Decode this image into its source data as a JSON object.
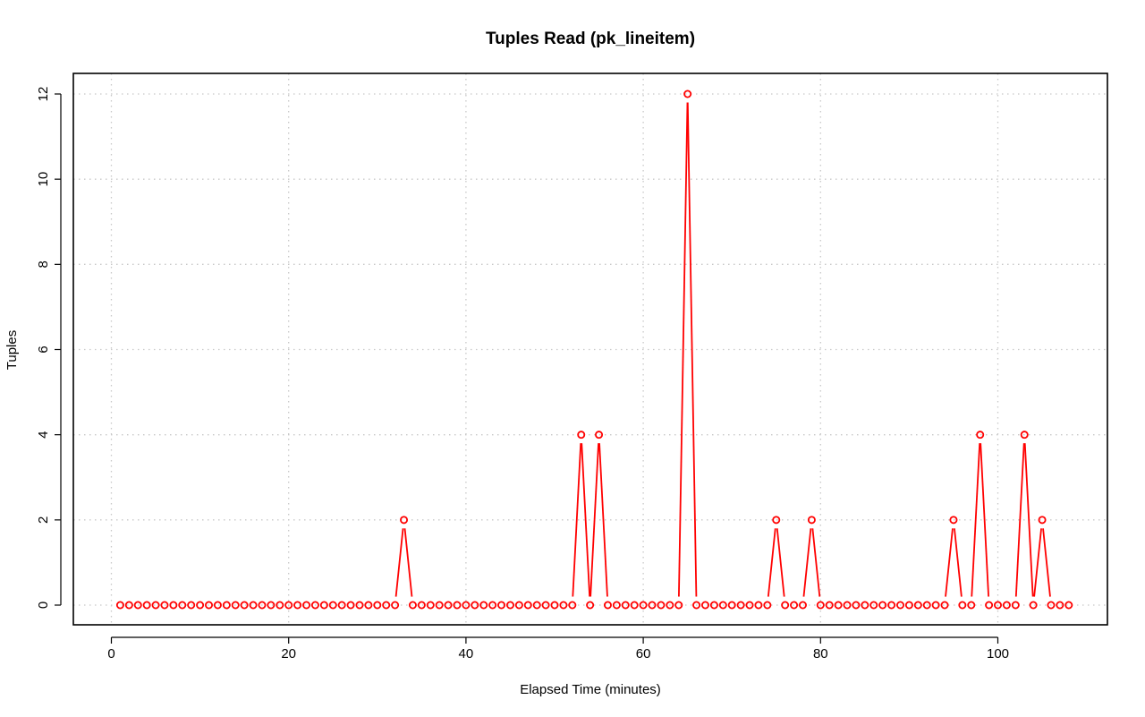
{
  "chart_data": {
    "type": "line",
    "title": "Tuples Read (pk_lineitem)",
    "xlabel": "Elapsed Time (minutes)",
    "ylabel": "Tuples",
    "xlim": [
      1,
      108
    ],
    "ylim": [
      0,
      12
    ],
    "x_ticks": [
      0,
      20,
      40,
      60,
      80,
      100
    ],
    "y_ticks": [
      0,
      2,
      4,
      6,
      8,
      10,
      12
    ],
    "grid": true,
    "line_style": "points joined by line segments",
    "marker": "open circle",
    "color": "#ff0000",
    "series": [
      {
        "x": [
          1,
          2,
          3,
          4,
          5,
          6,
          7,
          8,
          9,
          10,
          11,
          12,
          13,
          14,
          15,
          16,
          17,
          18,
          19,
          20,
          21,
          22,
          23,
          24,
          25,
          26,
          27,
          28,
          29,
          30,
          31,
          32,
          33,
          34,
          35,
          36,
          37,
          38,
          39,
          40,
          41,
          42,
          43,
          44,
          45,
          46,
          47,
          48,
          49,
          50,
          51,
          52,
          53,
          54,
          55,
          56,
          57,
          58,
          59,
          60,
          61,
          62,
          63,
          64,
          65,
          66,
          67,
          68,
          69,
          70,
          71,
          72,
          73,
          74,
          75,
          76,
          77,
          78,
          79,
          80,
          81,
          82,
          83,
          84,
          85,
          86,
          87,
          88,
          89,
          90,
          91,
          92,
          93,
          94,
          95,
          96,
          97,
          98,
          99,
          100,
          101,
          102,
          103,
          104,
          105,
          106,
          107,
          108
        ],
        "values": [
          0,
          0,
          0,
          0,
          0,
          0,
          0,
          0,
          0,
          0,
          0,
          0,
          0,
          0,
          0,
          0,
          0,
          0,
          0,
          0,
          0,
          0,
          0,
          0,
          0,
          0,
          0,
          0,
          0,
          0,
          0,
          0,
          2,
          0,
          0,
          0,
          0,
          0,
          0,
          0,
          0,
          0,
          0,
          0,
          0,
          0,
          0,
          0,
          0,
          0,
          0,
          0,
          4,
          0,
          4,
          0,
          0,
          0,
          0,
          0,
          0,
          0,
          0,
          0,
          12,
          0,
          0,
          0,
          0,
          0,
          0,
          0,
          0,
          0,
          2,
          0,
          0,
          0,
          2,
          0,
          0,
          0,
          0,
          0,
          0,
          0,
          0,
          0,
          0,
          0,
          0,
          0,
          0,
          0,
          2,
          0,
          0,
          4,
          0,
          0,
          0,
          0,
          4,
          0,
          2,
          0,
          0,
          0
        ]
      }
    ]
  }
}
